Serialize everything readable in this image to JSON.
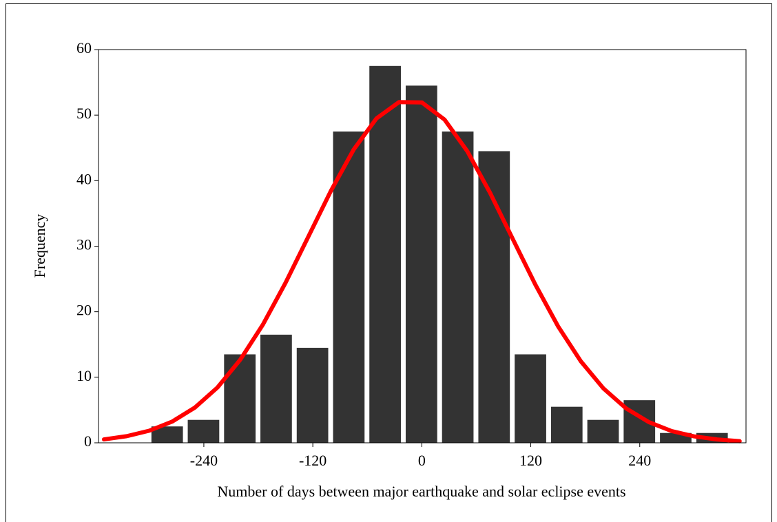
{
  "chart_data": {
    "type": "histogram",
    "xlabel": "Number of days between major earthquake and solar eclipse events",
    "ylabel": "Frequency",
    "bins": [
      -300,
      -260,
      -220,
      -180,
      -140,
      -100,
      -60,
      -20,
      20,
      60,
      100,
      140,
      180,
      220,
      260,
      300,
      340
    ],
    "values": [
      2.5,
      3.5,
      13.5,
      16.5,
      14.5,
      47.5,
      57.5,
      54.5,
      47.5,
      44.5,
      13.5,
      5.5,
      3.5,
      6.5,
      1.5,
      1.5
    ],
    "color": "#333333",
    "curve": {
      "color": "#ff0000",
      "x": [
        -350,
        -325,
        -300,
        -275,
        -250,
        -225,
        -200,
        -175,
        -150,
        -125,
        -100,
        -75,
        -50,
        -25,
        0,
        25,
        50,
        75,
        100,
        125,
        150,
        175,
        200,
        225,
        250,
        275,
        300,
        325,
        350
      ],
      "values": [
        0.52,
        1.01,
        1.85,
        3.23,
        5.36,
        8.44,
        12.66,
        18.03,
        24.42,
        31.44,
        38.47,
        44.75,
        49.48,
        51.99,
        51.94,
        49.32,
        44.52,
        38.19,
        31.15,
        24.15,
        17.79,
        12.46,
        8.3,
        5.25,
        3.16,
        1.8,
        0.98,
        0.51,
        0.25
      ]
    },
    "xlim": [
      -356,
      357
    ],
    "xticks": [
      -240,
      -120,
      0,
      120,
      240
    ],
    "ylim": [
      0,
      60
    ],
    "yticks": [
      0,
      10,
      20,
      30,
      40,
      50,
      60
    ]
  }
}
